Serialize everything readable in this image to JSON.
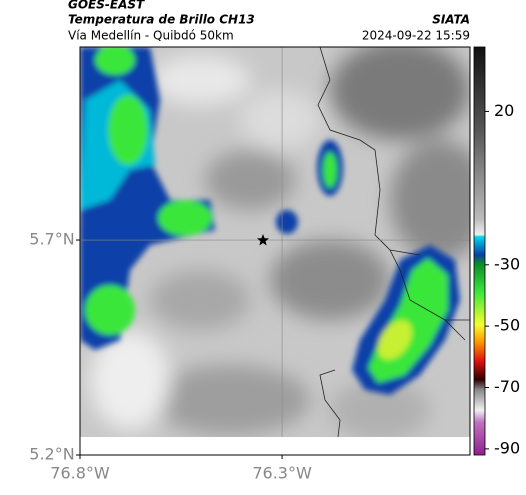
{
  "header": {
    "product": "GOES-EAST",
    "title": "Temperatura de Brillo CH13",
    "subtitle": "Vía Medellín - Quibdó 50km",
    "source": "SIATA",
    "datetime": "2024-09-22 15:59"
  },
  "map": {
    "xlim": [
      -76.8,
      -75.835
    ],
    "ylim": [
      5.2,
      6.149
    ],
    "xticks": [
      {
        "value": -76.8,
        "label": "76.8°W"
      },
      {
        "value": -76.3,
        "label": "76.3°W"
      }
    ],
    "yticks": [
      {
        "value": 5.7,
        "label": "5.7°N"
      },
      {
        "value": 5.2,
        "label": "5.2°N"
      }
    ]
  },
  "colorbar": {
    "lim": [
      -92,
      41
    ],
    "ticks": [
      20,
      -30,
      -50,
      -70,
      -90
    ]
  }
}
